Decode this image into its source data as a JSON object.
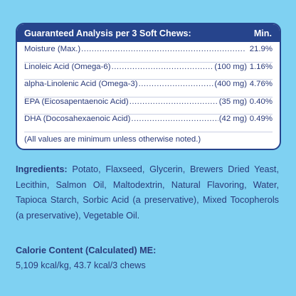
{
  "analysis": {
    "title": "Guaranteed Analysis per 3 Soft Chews:",
    "column_label": "Min.",
    "rows": [
      {
        "name": "Moisture (Max.)",
        "amount": "",
        "percent": "21.9%"
      },
      {
        "name": "Linoleic Acid (Omega-6)",
        "amount": "(100 mg)",
        "percent": "1.16%"
      },
      {
        "name": "alpha-Linolenic Acid (Omega-3)",
        "amount": "(400 mg)",
        "percent": "4.76%"
      },
      {
        "name": "EPA (Eicosapentaenoic Acid)",
        "amount": "(35 mg)",
        "percent": "0.40%"
      },
      {
        "name": "DHA (Docosahexaenoic Acid)",
        "amount": "(42 mg)",
        "percent": "0.49%"
      }
    ],
    "note": "(All values are minimum unless otherwise noted.)"
  },
  "ingredients": {
    "label": "Ingredients:",
    "text": "Potato, Flaxseed, Glycerin, Brewers Dried Yeast, Lecithin, Salmon Oil, Maltodextrin, Natural Flavoring, Water, Tapioca Starch, Sorbic Acid (a preservative), Mixed Tocopherols (a preservative), Vegetable Oil."
  },
  "calorie": {
    "title": "Calorie Content (Calculated) ME:",
    "value": "5,109 kcal/kg, 43.7 kcal/3 chews"
  }
}
